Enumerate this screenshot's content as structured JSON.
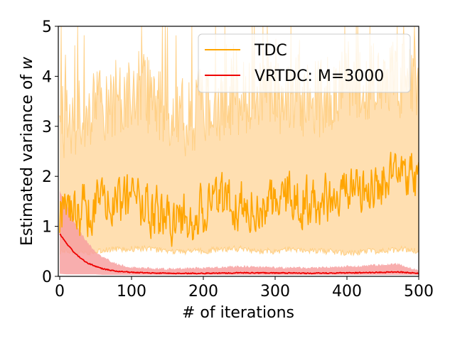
{
  "chart_data": {
    "type": "line",
    "title": "",
    "xlabel": "# of iterations",
    "ylabel": "Estimated variance of ",
    "ylabel_var": "w",
    "xlim": [
      -2,
      500
    ],
    "ylim": [
      0,
      5
    ],
    "xticks": [
      0,
      100,
      200,
      300,
      400,
      500
    ],
    "yticks": [
      0,
      1,
      2,
      3,
      4,
      5
    ],
    "xtick_labels": [
      "0",
      "100",
      "200",
      "300",
      "400",
      "500"
    ],
    "ytick_labels": [
      "0",
      "1",
      "2",
      "3",
      "4",
      "5"
    ],
    "grid": false,
    "legend": {
      "position": "top-right"
    },
    "series": [
      {
        "name": "TDC",
        "color": "#ffa500",
        "band_color": "#ffdca8",
        "band_edge_color": "#ffc870",
        "x_keypoints": [
          0,
          25,
          50,
          75,
          100,
          125,
          150,
          175,
          200,
          225,
          250,
          275,
          300,
          325,
          350,
          375,
          400,
          425,
          450,
          475,
          500
        ],
        "mean_keypoints": [
          1.3,
          1.35,
          1.4,
          1.45,
          1.5,
          1.4,
          1.1,
          1.15,
          1.3,
          1.45,
          1.5,
          1.45,
          1.55,
          1.6,
          1.45,
          1.55,
          1.7,
          1.8,
          1.85,
          1.9,
          1.95
        ],
        "lower_keypoints": [
          0.5,
          0.45,
          0.5,
          0.55,
          0.55,
          0.55,
          0.5,
          0.5,
          0.5,
          0.55,
          0.55,
          0.5,
          0.5,
          0.55,
          0.5,
          0.5,
          0.45,
          0.5,
          0.5,
          0.55,
          0.5
        ],
        "upper_keypoints": [
          3.0,
          3.1,
          3.3,
          3.5,
          3.8,
          3.6,
          3.2,
          3.2,
          3.4,
          3.5,
          3.6,
          3.5,
          3.6,
          3.7,
          3.5,
          3.6,
          3.8,
          3.9,
          4.0,
          3.9,
          4.0
        ]
      },
      {
        "name": "VRTDC: M=3000",
        "color": "#ee0000",
        "band_color": "#f7a0a0",
        "x_keypoints": [
          0,
          10,
          20,
          30,
          40,
          50,
          60,
          80,
          100,
          150,
          200,
          250,
          300,
          350,
          400,
          450,
          470,
          500
        ],
        "mean_keypoints": [
          0.85,
          0.65,
          0.48,
          0.35,
          0.26,
          0.2,
          0.15,
          0.1,
          0.08,
          0.06,
          0.06,
          0.07,
          0.07,
          0.06,
          0.07,
          0.08,
          0.09,
          0.06
        ],
        "lower_keypoints": [
          0.05,
          0.04,
          0.04,
          0.04,
          0.04,
          0.04,
          0.03,
          0.03,
          0.03,
          0.03,
          0.03,
          0.03,
          0.03,
          0.03,
          0.03,
          0.03,
          0.03,
          0.03
        ],
        "upper_keypoints": [
          1.7,
          1.4,
          1.1,
          0.85,
          0.65,
          0.48,
          0.38,
          0.25,
          0.18,
          0.15,
          0.17,
          0.2,
          0.18,
          0.17,
          0.2,
          0.23,
          0.25,
          0.12
        ]
      }
    ]
  }
}
